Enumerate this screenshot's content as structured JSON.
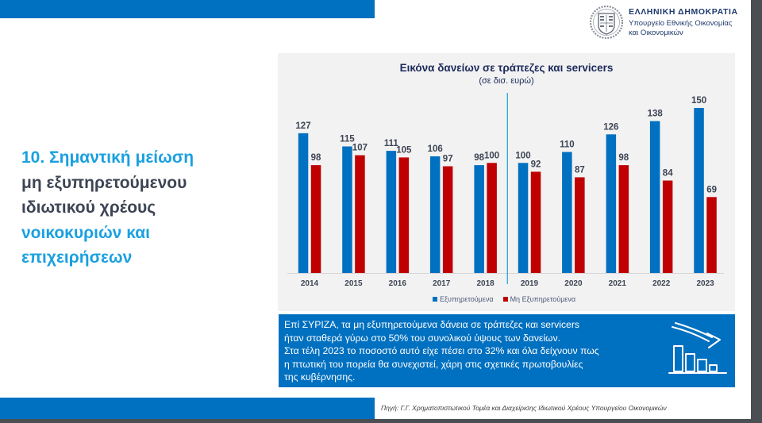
{
  "header": {
    "brand_title": "ΕΛΛΗΝΙΚΗ ΔΗΜΟΚΡΑΤΙΑ",
    "brand_subtitle_line1": "Υπουργείο Εθνικής Οικονομίας",
    "brand_subtitle_line2": "και Οικονομικών",
    "emblem_icon": "greek-coat-of-arms-icon"
  },
  "headline": {
    "line1": "10. Σημαντική μείωση",
    "line2": "μη εξυπηρετούμενου",
    "line3": "ιδιωτικού χρέους",
    "line4": "νοικοκυριών και",
    "line5": "επιχειρήσεων"
  },
  "colors": {
    "brand_blue": "#0070c0",
    "headline_blue": "#1aa0e0",
    "headline_dark": "#3d4454",
    "series_performing": "#0070c0",
    "series_nonperforming": "#c00000",
    "divider": "#2aa8d8"
  },
  "chart_data": {
    "type": "bar",
    "title": "Εικόνα δανείων σε τράπεζες και servicers",
    "subtitle": "(σε δισ. ευρώ)",
    "xlabel": "",
    "ylabel": "",
    "categories": [
      "2014",
      "2015",
      "2016",
      "2017",
      "2018",
      "2019",
      "2020",
      "2021",
      "2022",
      "2023"
    ],
    "series": [
      {
        "name": "Εξυπηρετούμενα",
        "color": "#0070c0",
        "values": [
          127,
          115,
          111,
          106,
          98,
          100,
          110,
          126,
          138,
          150
        ]
      },
      {
        "name": "Μη Εξυπηρετούμενα",
        "color": "#c00000",
        "values": [
          98,
          107,
          105,
          97,
          100,
          92,
          87,
          98,
          84,
          69
        ]
      }
    ],
    "ylim": [
      0,
      150
    ],
    "grid": false,
    "legend": "bottom",
    "divider_between": [
      "2018",
      "2019"
    ],
    "data_labels": true
  },
  "info_box": {
    "text": "Επί ΣΥΡΙΖΑ, τα μη εξυπηρετούμενα δάνεια σε τράπεζες και servicers\n ήταν σταθερά γύρω στο 50% του συνολικού ύψους των δανείων.\nΣτα τέλη 2023 το ποσοστό αυτό είχε πέσει στο 32% και όλα δείχνουν πως\nη πτωτική του πορεία θα συνεχιστεί, χάρη στις σχετικές πρωτοβουλίες\nτης κυβέρνησης.",
    "icon": "declining-bar-chart-icon"
  },
  "footer": {
    "source": "Πηγή: Γ.Γ. Χρηματοπιστωτικού Τομέα και Διαχείρισης Ιδιωτικού Χρέους Υπουργείου Οικονομικών"
  }
}
